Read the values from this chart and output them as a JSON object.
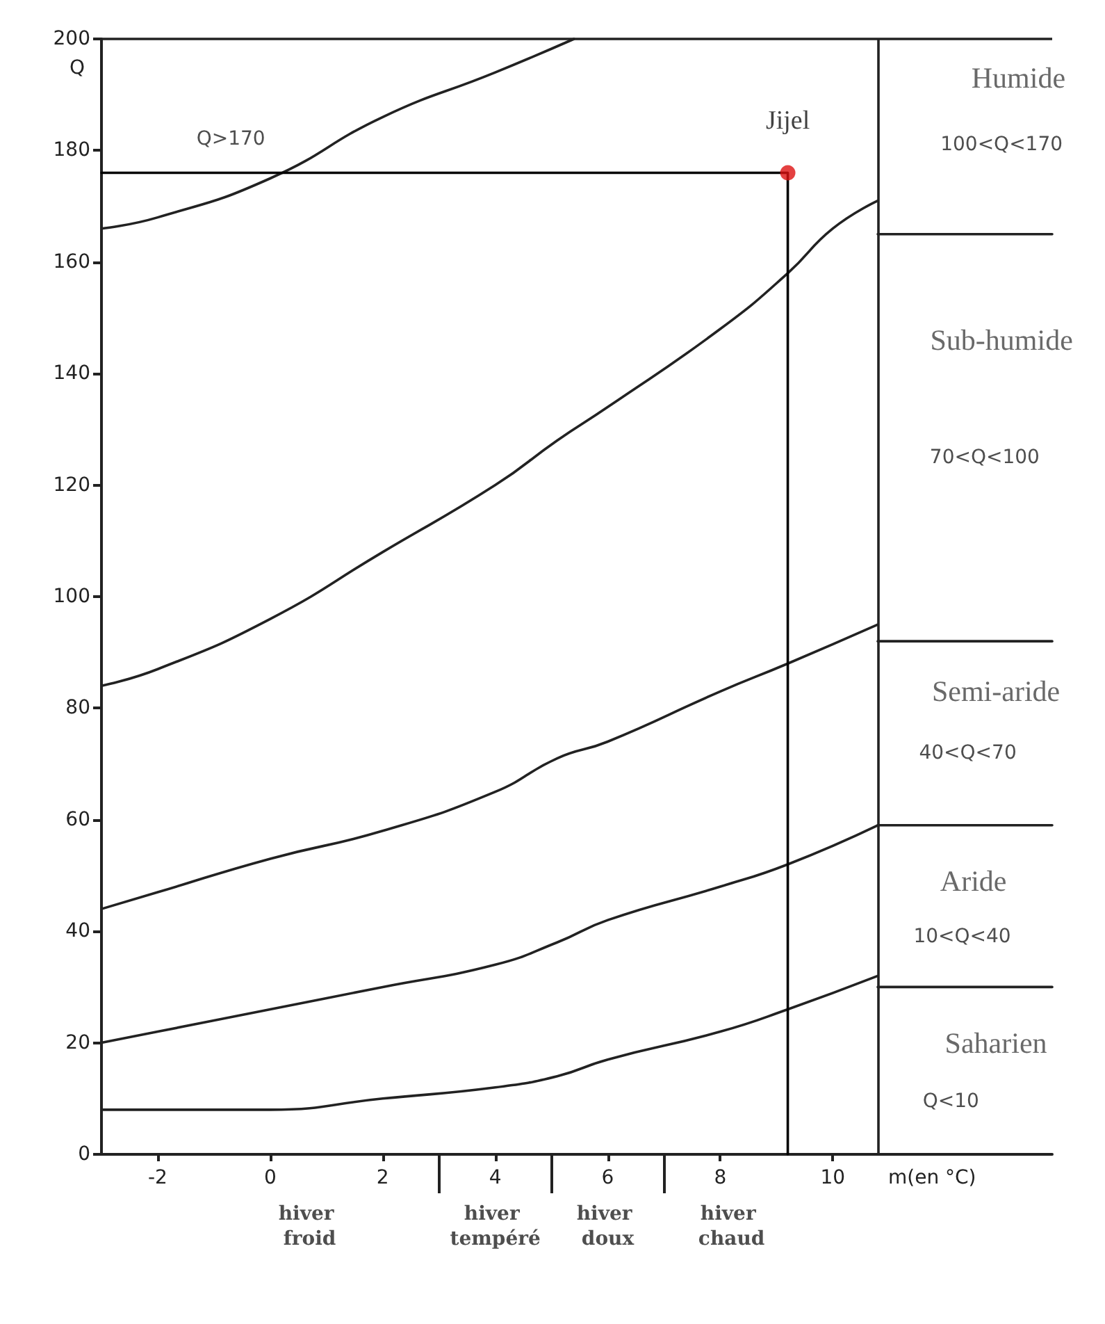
{
  "chart_data": {
    "type": "line",
    "xlabel": "m(en °C)",
    "ylabel": "Q",
    "xlim": [
      -3,
      13.9
    ],
    "xticks": [
      -2,
      0,
      2,
      4,
      6,
      8,
      10
    ],
    "ylim": [
      0,
      200
    ],
    "yticks": [
      0,
      20,
      40,
      60,
      80,
      100,
      120,
      140,
      160,
      180,
      200
    ],
    "grid": false,
    "marker": "none",
    "line_style": "solid",
    "series": [
      {
        "color": "#222222",
        "x": [
          -3,
          -2,
          0,
          2,
          4,
          5.4
        ],
        "values": [
          166,
          168,
          175,
          186,
          194,
          200
        ]
      },
      {
        "color": "#222222",
        "x": [
          -3,
          -2,
          0,
          2,
          4,
          5.1,
          6,
          8,
          9.2,
          10,
          10.8
        ],
        "values": [
          84,
          87,
          96,
          108,
          120,
          128,
          134,
          148,
          158,
          166,
          171
        ]
      },
      {
        "color": "#222222",
        "x": [
          -3,
          -2,
          0,
          2,
          4,
          5.1,
          6,
          8,
          9.2,
          10.8
        ],
        "values": [
          44,
          47,
          53,
          58,
          65,
          71,
          74,
          83,
          88,
          95
        ]
      },
      {
        "color": "#222222",
        "x": [
          -3,
          -2,
          0,
          2,
          4,
          5.1,
          6,
          8,
          9.2,
          10.8
        ],
        "values": [
          20,
          22,
          26,
          30,
          34,
          38,
          42,
          48,
          52,
          59
        ]
      },
      {
        "color": "#222222",
        "x": [
          -3,
          -2,
          0,
          2,
          4,
          5.1,
          6,
          8,
          9.2,
          10.8
        ],
        "values": [
          8,
          8,
          8,
          10,
          12,
          14,
          17,
          22,
          26,
          32
        ]
      },
      {
        "color": "#000000",
        "x": [
          -3,
          9.2,
          9.2
        ],
        "values": [
          176,
          176,
          0
        ]
      },
      {
        "type": "scatter",
        "name": "Jijel",
        "marker": "circle",
        "color": "#dd1111",
        "x": [
          9.2
        ],
        "values": [
          176
        ]
      },
      {
        "color": "#222222",
        "x": [
          10.8,
          13.9
        ],
        "values": [
          165,
          165
        ]
      },
      {
        "color": "#222222",
        "x": [
          10.8,
          13.9
        ],
        "values": [
          92,
          92
        ]
      },
      {
        "color": "#222222",
        "x": [
          10.8,
          13.9
        ],
        "values": [
          59,
          59
        ]
      },
      {
        "color": "#222222",
        "x": [
          10.8,
          13.9
        ],
        "values": [
          30,
          30
        ]
      }
    ],
    "ref_lines": [
      {
        "axis": "x",
        "value": 10.8,
        "color": "#222222"
      },
      {
        "axis": "y",
        "value": 200,
        "color": "#222222"
      }
    ],
    "annotations": [
      "Q>170",
      "Humide",
      "100<Q<170",
      "Sub-humide",
      "70<Q<100",
      "Semi-aride",
      "40<Q<70",
      "Aride",
      "10<Q<40",
      "Saharien",
      "Q<10",
      "hiver froid",
      "hiver tempéré",
      "hiver doux",
      "hiver chaud"
    ]
  }
}
